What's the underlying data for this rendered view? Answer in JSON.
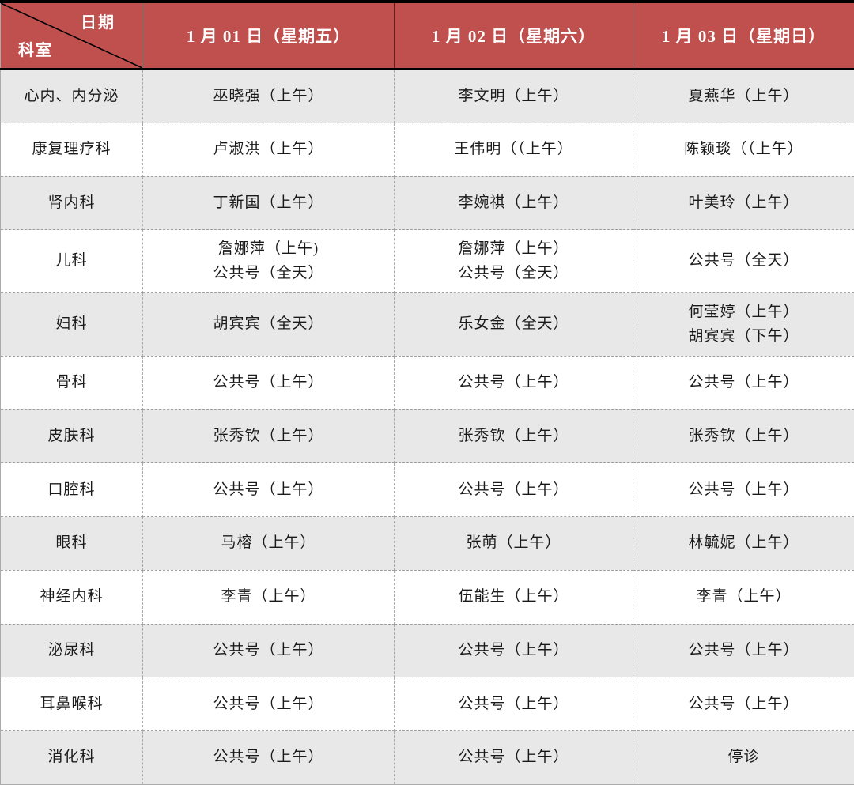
{
  "header": {
    "corner_top": "日期",
    "corner_bottom": "科室",
    "columns": [
      "1 月 01 日（星期五）",
      "1 月 02 日（星期六）",
      "1 月 03 日（星期日）"
    ]
  },
  "rows": [
    {
      "department": "心内、内分泌",
      "cells": [
        [
          "巫晓强（上午）"
        ],
        [
          "李文明（上午）"
        ],
        [
          "夏燕华（上午）"
        ]
      ]
    },
    {
      "department": "康复理疗科",
      "cells": [
        [
          "卢淑洪（上午）"
        ],
        [
          "王伟明（（上午）"
        ],
        [
          "陈颖琰（（上午）"
        ]
      ]
    },
    {
      "department": "肾内科",
      "cells": [
        [
          "丁新国（上午）"
        ],
        [
          "李婉祺（上午）"
        ],
        [
          "叶美玲（上午）"
        ]
      ]
    },
    {
      "department": "儿科",
      "cells": [
        [
          "詹娜萍（上午)",
          "公共号（全天）"
        ],
        [
          "詹娜萍（上午）",
          "公共号（全天）"
        ],
        [
          "公共号（全天）"
        ]
      ]
    },
    {
      "department": "妇科",
      "cells": [
        [
          "胡宾宾（全天）"
        ],
        [
          "乐女金（全天）"
        ],
        [
          "何莹婷（上午）",
          "胡宾宾（下午）"
        ]
      ]
    },
    {
      "department": "骨科",
      "cells": [
        [
          "公共号（上午）"
        ],
        [
          "公共号（上午）"
        ],
        [
          "公共号（上午）"
        ]
      ]
    },
    {
      "department": "皮肤科",
      "cells": [
        [
          "张秀钦（上午）"
        ],
        [
          "张秀钦（上午）"
        ],
        [
          "张秀钦（上午）"
        ]
      ]
    },
    {
      "department": "口腔科",
      "cells": [
        [
          "公共号（上午）"
        ],
        [
          "公共号（上午）"
        ],
        [
          "公共号（上午）"
        ]
      ]
    },
    {
      "department": "眼科",
      "cells": [
        [
          "马榕（上午）"
        ],
        [
          "张萌（上午）"
        ],
        [
          "林毓妮（上午）"
        ]
      ]
    },
    {
      "department": "神经内科",
      "cells": [
        [
          "李青（上午）"
        ],
        [
          "伍能生（上午）"
        ],
        [
          "李青（上午）"
        ]
      ]
    },
    {
      "department": "泌尿科",
      "cells": [
        [
          "公共号（上午）"
        ],
        [
          "公共号（上午）"
        ],
        [
          "公共号（上午）"
        ]
      ]
    },
    {
      "department": "耳鼻喉科",
      "cells": [
        [
          "公共号（上午）"
        ],
        [
          "公共号（上午）"
        ],
        [
          "公共号（上午）"
        ]
      ]
    },
    {
      "department": "消化科",
      "cells": [
        [
          "公共号（上午）"
        ],
        [
          "公共号（上午）"
        ],
        [
          "停诊"
        ]
      ]
    }
  ],
  "colors": {
    "header_bg": "#c0504d",
    "header_text": "#ffffff",
    "alt_row_bg": "#e9e8e8",
    "row_bg": "#ffffff",
    "heavy_border": "#000000",
    "inner_border": "#ababab"
  }
}
